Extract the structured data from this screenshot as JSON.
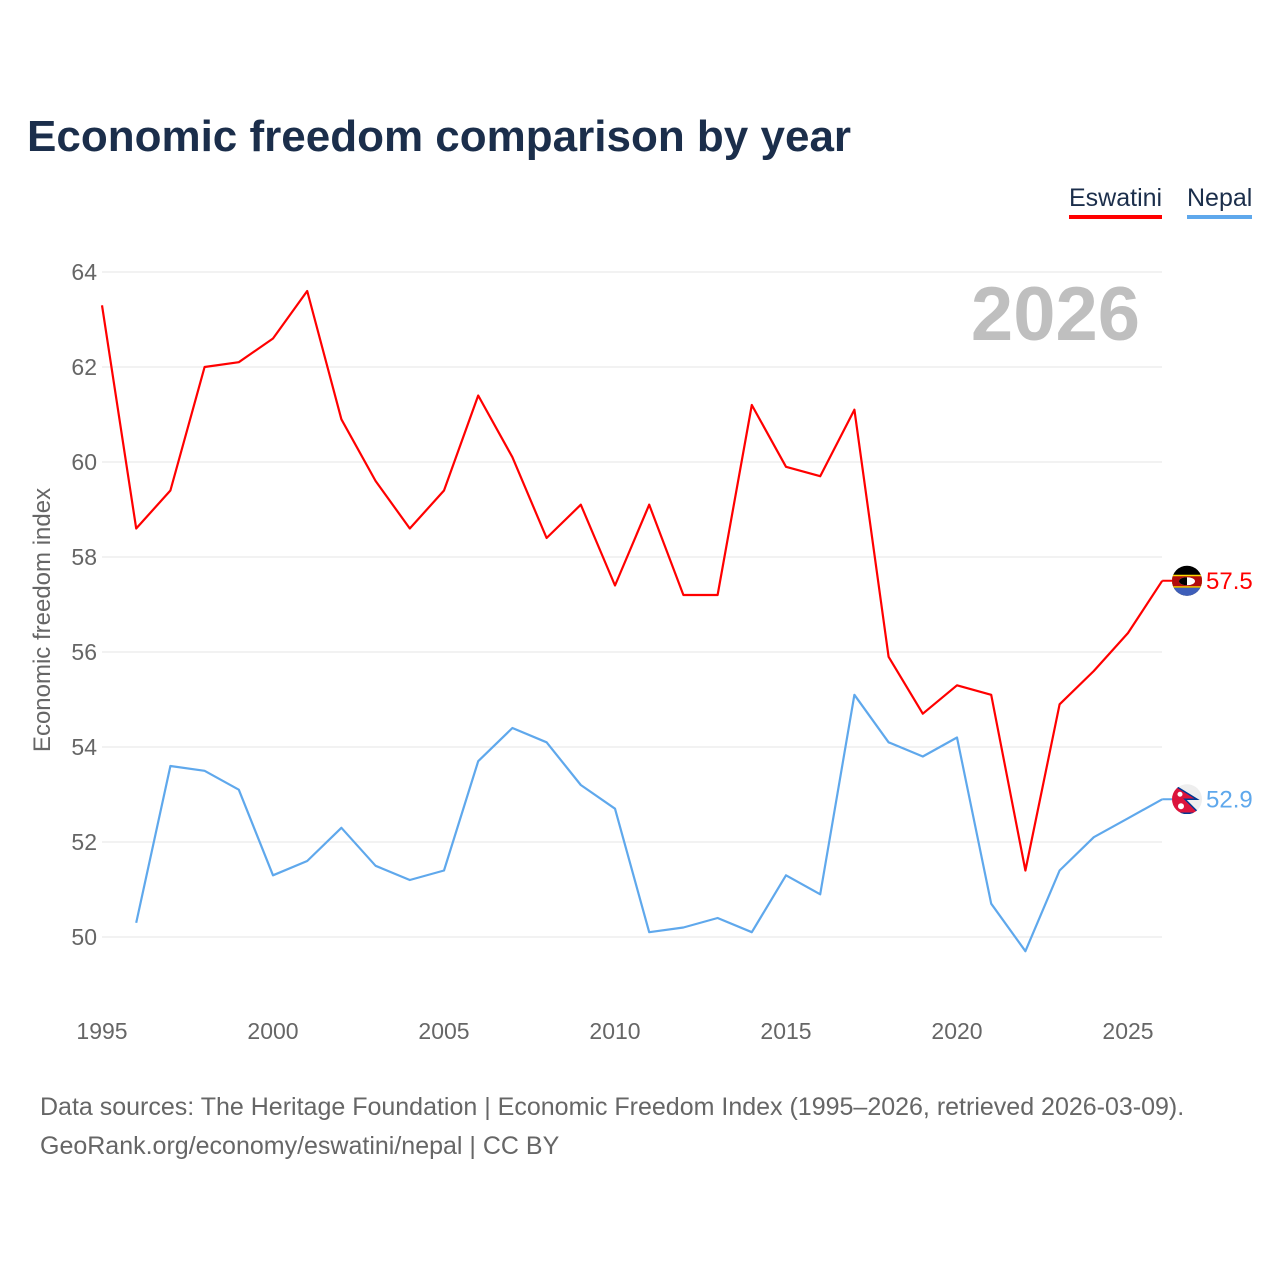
{
  "title": "Economic freedom comparison by year",
  "footer": {
    "line1": "Data sources: The Heritage Foundation | Economic Freedom Index (1995–2026, retrieved 2026-03-09).",
    "line2": "GeoRank.org/economy/eswatini/nepal | CC BY"
  },
  "chart_data": {
    "type": "line",
    "title": "Economic freedom comparison by year",
    "xlabel": "",
    "ylabel": "Economic freedom index",
    "xlim": [
      1995,
      2026
    ],
    "ylim": [
      49,
      64
    ],
    "yticks": [
      50,
      52,
      54,
      56,
      58,
      60,
      62,
      64
    ],
    "xticks": [
      1995,
      2000,
      2005,
      2010,
      2015,
      2020,
      2025
    ],
    "grid": true,
    "legend": "top-right",
    "year_watermark": "2026",
    "series": [
      {
        "name": "Eswatini",
        "color": "#ff0000",
        "end_label": "57.5",
        "icon": "eswatini-flag-icon",
        "x": [
          1995,
          1996,
          1997,
          1998,
          1999,
          2000,
          2001,
          2002,
          2003,
          2004,
          2005,
          2006,
          2007,
          2008,
          2009,
          2010,
          2011,
          2012,
          2013,
          2014,
          2015,
          2016,
          2017,
          2018,
          2019,
          2020,
          2021,
          2022,
          2023,
          2024,
          2025,
          2026
        ],
        "values": [
          63.3,
          58.6,
          59.4,
          62.0,
          62.1,
          62.6,
          63.6,
          60.9,
          59.6,
          58.6,
          59.4,
          61.4,
          60.1,
          58.4,
          59.1,
          57.4,
          59.1,
          57.2,
          57.2,
          61.2,
          59.9,
          59.7,
          61.1,
          55.9,
          54.7,
          55.3,
          55.1,
          51.4,
          54.9,
          55.6,
          56.4,
          57.5
        ]
      },
      {
        "name": "Nepal",
        "color": "#5fa8ec",
        "end_label": "52.9",
        "icon": "nepal-flag-icon",
        "x": [
          1996,
          1997,
          1998,
          1999,
          2000,
          2001,
          2002,
          2003,
          2004,
          2005,
          2006,
          2007,
          2008,
          2009,
          2010,
          2011,
          2012,
          2013,
          2014,
          2015,
          2016,
          2017,
          2018,
          2019,
          2020,
          2021,
          2022,
          2023,
          2024,
          2025,
          2026
        ],
        "values": [
          50.3,
          53.6,
          53.5,
          53.1,
          51.3,
          51.6,
          52.3,
          51.5,
          51.2,
          51.4,
          53.7,
          54.4,
          54.1,
          53.2,
          52.7,
          50.1,
          50.2,
          50.4,
          50.1,
          51.3,
          50.9,
          55.1,
          54.1,
          53.8,
          54.2,
          50.7,
          49.7,
          51.4,
          52.1,
          52.5,
          52.9
        ]
      }
    ]
  }
}
